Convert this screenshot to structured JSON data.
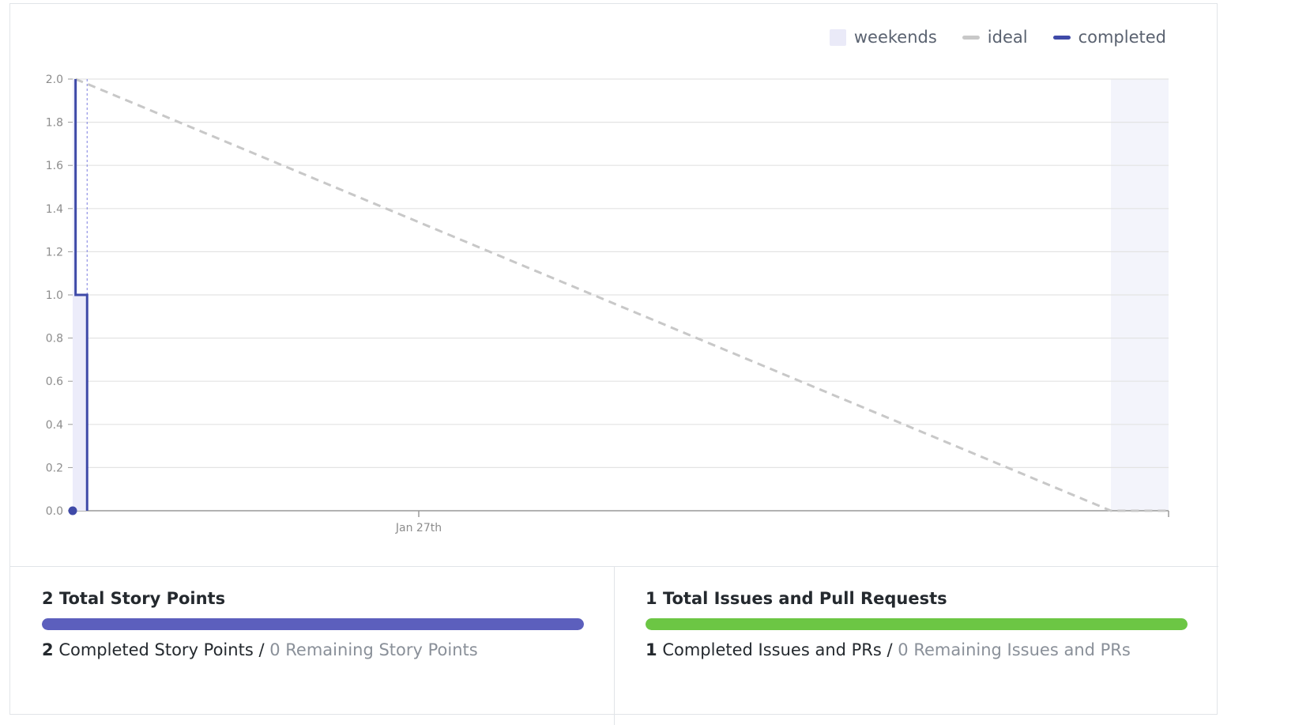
{
  "chart_data": {
    "type": "line",
    "legend": {
      "position": "top-right",
      "items": [
        "weekends",
        "ideal",
        "completed"
      ]
    },
    "x_tick_labels": [
      "Jan 27th"
    ],
    "y_ticks": [
      "0.0",
      "0.2",
      "0.4",
      "0.6",
      "0.8",
      "1.0",
      "1.2",
      "1.4",
      "1.6",
      "1.8",
      "2.0"
    ],
    "ylim": [
      0,
      2
    ],
    "x_day_range": [
      0,
      19
    ],
    "jan27_day": 6,
    "weekend_ranges": [
      [
        18,
        19
      ]
    ],
    "grid": true,
    "series": [
      {
        "name": "ideal",
        "style": "dashed",
        "color": "#c8c8c8",
        "points": [
          [
            0.05,
            2.0
          ],
          [
            18.0,
            0.0
          ],
          [
            19.0,
            0.0
          ]
        ]
      },
      {
        "name": "completed",
        "style": "step",
        "color": "#3f4aa8",
        "points": [
          [
            0.05,
            2.0
          ],
          [
            0.05,
            1.0
          ],
          [
            0.25,
            1.0
          ],
          [
            0.25,
            0.0
          ]
        ]
      }
    ]
  },
  "colors": {
    "story_bar": "#5c5fbd",
    "issues_bar": "#6cc644",
    "completed": "#3f4aa8",
    "ideal": "#c8c8c8",
    "weekend": "#f3f4fb"
  },
  "stats": {
    "story": {
      "total_value": "2",
      "total_label": "Total Story Points",
      "progress": 1.0,
      "completed_value": "2",
      "completed_label": "Completed Story Points",
      "separator": "/",
      "remaining_value": "0",
      "remaining_label": "Remaining Story Points"
    },
    "issues": {
      "total_value": "1",
      "total_label": "Total Issues and Pull Requests",
      "progress": 1.0,
      "completed_value": "1",
      "completed_label": "Completed Issues and PRs",
      "separator": "/",
      "remaining_value": "0",
      "remaining_label": "Remaining Issues and PRs"
    }
  }
}
